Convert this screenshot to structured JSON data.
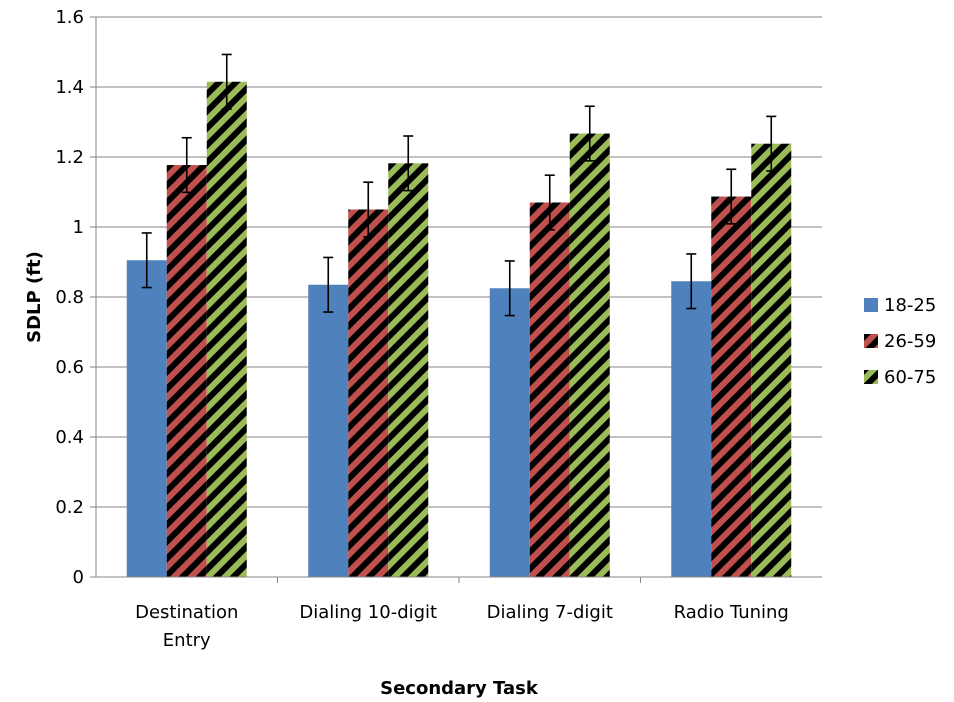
{
  "chart_data": {
    "type": "bar",
    "title": "",
    "xlabel": "Secondary Task",
    "ylabel": "SDLP (ft)",
    "ylim": [
      0,
      1.6
    ],
    "yticks": [
      "0",
      "0.2",
      "0.4",
      "0.6",
      "0.8",
      "1",
      "1.2",
      "1.4",
      "1.6"
    ],
    "grid": true,
    "legend_position": "right",
    "categories": [
      [
        "Destination",
        "Entry"
      ],
      [
        "Dialing 10-digit"
      ],
      [
        "Dialing 7-digit"
      ],
      [
        "Radio Tuning"
      ]
    ],
    "series": [
      {
        "name": "18-25",
        "values": [
          0.905,
          0.835,
          0.825,
          0.845
        ],
        "errors": [
          0.078,
          0.078,
          0.078,
          0.078
        ],
        "color": "#4f81bd",
        "pattern": "solid"
      },
      {
        "name": "26-59",
        "values": [
          1.177,
          1.05,
          1.07,
          1.087
        ],
        "errors": [
          0.078,
          0.078,
          0.078,
          0.078
        ],
        "color": "#c0504d",
        "stripe": "#000000",
        "pattern": "wide-diagonal"
      },
      {
        "name": "60-75",
        "values": [
          1.415,
          1.182,
          1.267,
          1.238
        ],
        "errors": [
          0.078,
          0.078,
          0.078,
          0.078
        ],
        "color": "#9bbb59",
        "stripe": "#000000",
        "pattern": "wide-diagonal"
      }
    ]
  }
}
